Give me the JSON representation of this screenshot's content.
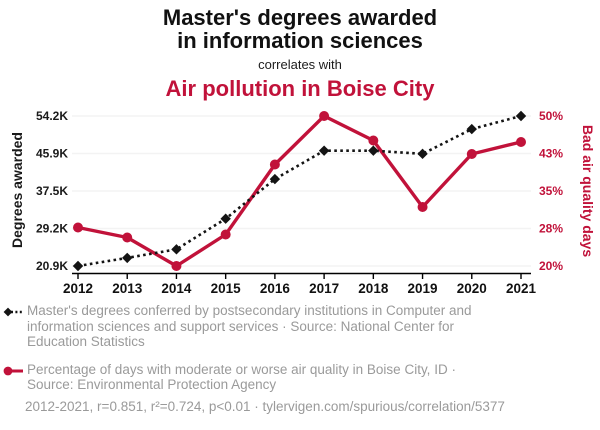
{
  "header": {
    "title": "Master's degrees awarded\nin information sciences",
    "connector": "correlates with",
    "subtitle": "Air pollution in Boise City"
  },
  "chart_data": {
    "type": "line",
    "x": [
      2012,
      2013,
      2014,
      2015,
      2016,
      2017,
      2018,
      2019,
      2020,
      2021
    ],
    "x_tick_labels": [
      "2012",
      "2013",
      "2014",
      "2015",
      "2016",
      "2017",
      "2018",
      "2019",
      "2020",
      "2021"
    ],
    "left_axis": {
      "label": "Degrees awarded",
      "tick_labels": [
        "54.2K",
        "45.9K",
        "37.5K",
        "29.2K",
        "20.9K"
      ],
      "range": [
        20.9,
        54.2
      ],
      "unit": "thousands of degrees"
    },
    "right_axis": {
      "label": "Bad air quality days",
      "tick_labels": [
        "50%",
        "43%",
        "35%",
        "28%",
        "20%"
      ],
      "range": [
        20,
        50
      ],
      "unit": "percent of days"
    },
    "series": [
      {
        "name": "Master's degrees awarded in information sciences",
        "axis": "left",
        "marker": "diamond",
        "line_style": "dashed",
        "color": "#141414",
        "values": [
          20.9,
          22.7,
          24.6,
          31.4,
          40.2,
          46.5,
          46.5,
          45.8,
          51.3,
          54.2
        ],
        "values_unit": "K degrees"
      },
      {
        "name": "Air pollution in Boise City",
        "axis": "right",
        "marker": "circle",
        "line_style": "solid",
        "color": "#c1123a",
        "values": [
          27.7,
          25.7,
          20.0,
          26.3,
          40.3,
          50.0,
          45.1,
          31.8,
          42.4,
          44.8
        ],
        "values_unit": "%"
      }
    ],
    "grid": true,
    "legend_position": "below"
  },
  "legend": {
    "entries": [
      {
        "icon": "black-diamond-dashed-line",
        "text": "Master's degrees conferred by postsecondary institutions in Computer and\ninformation sciences and support services · Source: National Center for\nEducation Statistics"
      },
      {
        "icon": "red-circle-solid-line",
        "text": "Percentage of days with moderate or worse air quality in Boise City, ID ·\nSource: Environmental Protection Agency"
      }
    ]
  },
  "footer": {
    "text": "2012-2021, r=0.851, r²=0.724, p<0.01 · tylervigen.com/spurious/correlation/5377"
  },
  "colors": {
    "accent_red": "#c1123a",
    "series_black": "#141414",
    "text_gray": "#9a9a9a",
    "gridline": "#f3f3f3",
    "axis_black": "#000000"
  }
}
